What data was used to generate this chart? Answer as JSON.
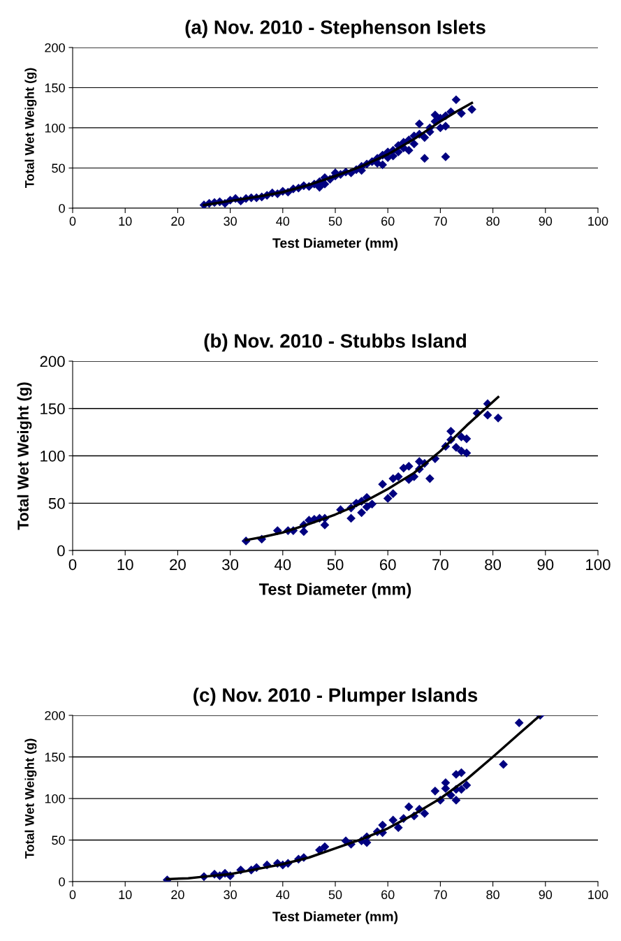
{
  "chart_data": [
    {
      "type": "scatter",
      "title": "(a) Nov. 2010 - Stephenson Islets",
      "xlabel": "Test Diameter (mm)",
      "ylabel": "Total Wet Weight (g)",
      "xlim": [
        0,
        100
      ],
      "ylim": [
        0,
        200
      ],
      "xticks": [
        0,
        10,
        20,
        30,
        40,
        50,
        60,
        70,
        80,
        90,
        100
      ],
      "yticks": [
        0,
        50,
        100,
        150,
        200
      ],
      "grid": "y",
      "marker": "diamond",
      "series": [
        {
          "color": "#000080",
          "x": [
            25,
            26,
            27,
            28,
            29,
            30,
            31,
            32,
            33,
            34,
            35,
            36,
            37,
            38,
            39,
            40,
            41,
            42,
            43,
            44,
            45,
            46,
            47,
            47,
            48,
            48,
            49,
            50,
            50,
            51,
            52,
            53,
            54,
            55,
            55,
            56,
            57,
            58,
            58,
            59,
            59,
            60,
            60,
            61,
            61,
            62,
            62,
            63,
            63,
            64,
            64,
            65,
            65,
            66,
            66,
            67,
            67,
            68,
            68,
            69,
            69,
            70,
            70,
            71,
            71,
            71,
            72,
            73,
            74,
            76
          ],
          "values": [
            4,
            6,
            7,
            8,
            6,
            10,
            12,
            9,
            12,
            13,
            13,
            14,
            16,
            19,
            18,
            21,
            20,
            24,
            25,
            28,
            27,
            30,
            26,
            33,
            30,
            38,
            36,
            40,
            44,
            42,
            45,
            44,
            48,
            47,
            52,
            55,
            58,
            56,
            62,
            54,
            66,
            63,
            70,
            65,
            72,
            70,
            78,
            75,
            82,
            72,
            85,
            80,
            90,
            92,
            105,
            62,
            88,
            95,
            100,
            108,
            116,
            100,
            112,
            64,
            102,
            115,
            120,
            135,
            118,
            123
          ]
        },
        {
          "type": "line",
          "color": "#000000",
          "marker": "none",
          "x": [
            25,
            30,
            35,
            40,
            45,
            50,
            55,
            60,
            65,
            70,
            73,
            76
          ],
          "values": [
            4,
            9,
            14,
            20,
            29,
            40,
            52,
            67,
            86,
            108,
            120,
            131
          ]
        }
      ]
    },
    {
      "type": "scatter",
      "title": "(b) Nov. 2010 - Stubbs Island",
      "xlabel": "Test Diameter (mm)",
      "ylabel": "Total Wet Weight (g)",
      "xlim": [
        0,
        100
      ],
      "ylim": [
        0,
        200
      ],
      "xticks": [
        0,
        10,
        20,
        30,
        40,
        50,
        60,
        70,
        80,
        90,
        100
      ],
      "yticks": [
        0,
        50,
        100,
        150,
        200
      ],
      "grid": "y",
      "marker": "diamond",
      "series": [
        {
          "color": "#000080",
          "x": [
            33,
            36,
            39,
            41,
            42,
            44,
            44,
            45,
            46,
            47,
            48,
            48,
            51,
            53,
            53,
            54,
            55,
            55,
            56,
            56,
            57,
            59,
            60,
            61,
            61,
            62,
            63,
            64,
            64,
            65,
            66,
            66,
            67,
            68,
            69,
            71,
            72,
            72,
            73,
            74,
            74,
            75,
            75,
            77,
            79,
            79,
            81
          ],
          "values": [
            10,
            12,
            21,
            21,
            21,
            20,
            27,
            32,
            33,
            34,
            27,
            34,
            43,
            34,
            45,
            50,
            40,
            52,
            56,
            46,
            49,
            70,
            55,
            60,
            76,
            78,
            87,
            89,
            75,
            78,
            94,
            86,
            92,
            76,
            97,
            110,
            126,
            117,
            109,
            120,
            105,
            103,
            118,
            145,
            155,
            143,
            140
          ]
        },
        {
          "type": "line",
          "color": "#000000",
          "marker": "none",
          "x": [
            33,
            36,
            40,
            45,
            50,
            55,
            60,
            65,
            70,
            75,
            81
          ],
          "values": [
            11,
            14,
            19,
            28,
            38,
            50,
            65,
            82,
            105,
            132,
            162
          ]
        }
      ]
    },
    {
      "type": "scatter",
      "title": "(c) Nov. 2010 - Plumper Islands",
      "xlabel": "Test Diameter (mm)",
      "ylabel": "Total Wet Weight (g)",
      "xlim": [
        0,
        100
      ],
      "ylim": [
        0,
        200
      ],
      "xticks": [
        0,
        10,
        20,
        30,
        40,
        50,
        60,
        70,
        80,
        90,
        100
      ],
      "yticks": [
        0,
        50,
        100,
        150,
        200
      ],
      "grid": "y",
      "marker": "diamond",
      "series": [
        {
          "color": "#000080",
          "x": [
            18,
            25,
            27,
            28,
            29,
            30,
            32,
            34,
            35,
            37,
            39,
            40,
            41,
            43,
            44,
            47,
            48,
            52,
            53,
            55,
            56,
            56,
            58,
            59,
            59,
            61,
            62,
            63,
            64,
            65,
            66,
            67,
            69,
            70,
            71,
            71,
            72,
            73,
            73,
            73,
            74,
            74,
            75,
            82,
            85,
            89
          ],
          "values": [
            2,
            6,
            9,
            7,
            10,
            7,
            14,
            14,
            17,
            20,
            22,
            20,
            22,
            27,
            29,
            38,
            42,
            49,
            45,
            49,
            54,
            47,
            60,
            68,
            59,
            74,
            65,
            76,
            90,
            79,
            87,
            82,
            109,
            98,
            119,
            112,
            104,
            111,
            129,
            98,
            111,
            131,
            116,
            141,
            191,
            200
          ]
        },
        {
          "type": "line",
          "color": "#000000",
          "marker": "none",
          "x": [
            18,
            22,
            25,
            30,
            35,
            40,
            45,
            50,
            55,
            60,
            65,
            70,
            75,
            80,
            85,
            89
          ],
          "values": [
            3,
            4,
            6,
            9,
            15,
            21,
            29,
            40,
            51,
            64,
            81,
            100,
            123,
            150,
            178,
            200
          ]
        }
      ]
    }
  ]
}
